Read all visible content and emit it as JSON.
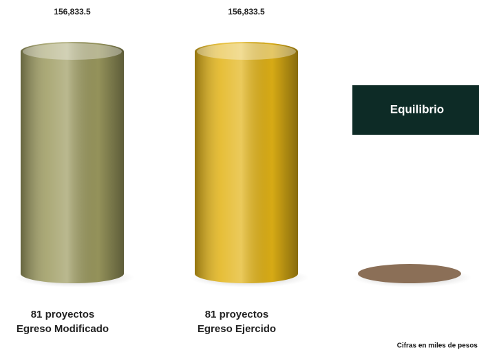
{
  "chart_data": {
    "type": "cylinder-bar",
    "categories": [
      "Egreso Modificado",
      "Egreso Ejercido",
      null
    ],
    "category_notes": [
      "81 proyectos",
      "81 proyectos",
      null
    ],
    "values": [
      156833.5,
      156833.5,
      0
    ],
    "value_labels": [
      "156,833.5",
      "156,833.5",
      null
    ],
    "colors": [
      "#9c9a5f",
      "#e2b316",
      "#8b6f57"
    ],
    "annotation": "Equilibrio",
    "footnote": "Cifras en miles de pesos"
  }
}
